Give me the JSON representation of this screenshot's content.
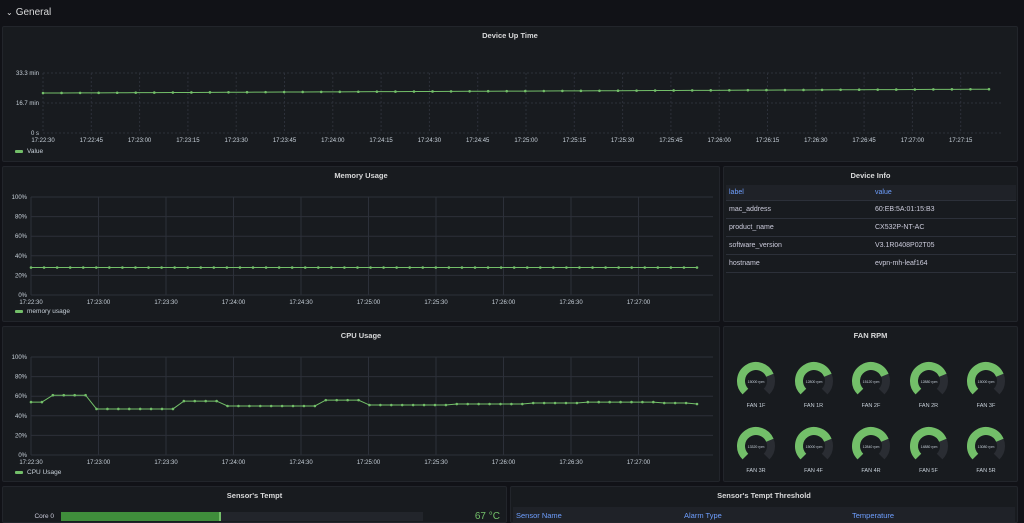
{
  "row": {
    "title": "General"
  },
  "panels": {
    "uptime": {
      "title": "Device Up Time",
      "legend": "Value",
      "y_ticks": [
        "33.3 min",
        "16.7 min",
        "0 s"
      ],
      "x_ticks": [
        "17:22:30",
        "17:22:45",
        "17:23:00",
        "17:23:15",
        "17:23:30",
        "17:23:45",
        "17:24:00",
        "17:24:15",
        "17:24:30",
        "17:24:45",
        "17:25:00",
        "17:25:15",
        "17:25:30",
        "17:25:45",
        "17:26:00",
        "17:26:15",
        "17:26:30",
        "17:26:45",
        "17:27:00",
        "17:27:15"
      ]
    },
    "memory": {
      "title": "Memory Usage",
      "legend": "memory usage",
      "y_ticks": [
        "100%",
        "80%",
        "60%",
        "40%",
        "20%",
        "0%"
      ],
      "x_ticks": [
        "17:22:30",
        "17:23:00",
        "17:23:30",
        "17:24:00",
        "17:24:30",
        "17:25:00",
        "17:25:30",
        "17:26:00",
        "17:26:30",
        "17:27:00"
      ]
    },
    "cpu": {
      "title": "CPU Usage",
      "legend": "CPU Usage",
      "y_ticks": [
        "100%",
        "80%",
        "60%",
        "40%",
        "20%",
        "0%"
      ],
      "x_ticks": [
        "17:22:30",
        "17:23:00",
        "17:23:30",
        "17:24:00",
        "17:24:30",
        "17:25:00",
        "17:25:30",
        "17:26:00",
        "17:26:30",
        "17:27:00"
      ]
    },
    "device_info": {
      "title": "Device Info",
      "columns": [
        "label",
        "value"
      ],
      "rows": [
        [
          "mac_address",
          "60:EB:5A:01:15:B3"
        ],
        [
          "product_name",
          "CX532P-NT-AC"
        ],
        [
          "software_version",
          "V3.1R0408P02T05"
        ],
        [
          "hostname",
          "evpn-mh-leaf164"
        ]
      ]
    },
    "fan_rpm": {
      "title": "FAN RPM",
      "fans": [
        {
          "name": "FAN 1F",
          "reading": "15000 rpm",
          "level": 0.75
        },
        {
          "name": "FAN 1R",
          "reading": "12800 rpm",
          "level": 0.75
        },
        {
          "name": "FAN 2F",
          "reading": "15120 rpm",
          "level": 0.75
        },
        {
          "name": "FAN 2R",
          "reading": "12880 rpm",
          "level": 0.75
        },
        {
          "name": "FAN 3F",
          "reading": "15000 rpm",
          "level": 0.75
        },
        {
          "name": "FAN 3R",
          "reading": "13320 rpm",
          "level": 0.75
        },
        {
          "name": "FAN 4F",
          "reading": "15000 rpm",
          "level": 0.75
        },
        {
          "name": "FAN 4R",
          "reading": "12840 rpm",
          "level": 0.75
        },
        {
          "name": "FAN 5F",
          "reading": "14880 rpm",
          "level": 0.75
        },
        {
          "name": "FAN 5R",
          "reading": "13080 rpm",
          "level": 0.75
        }
      ]
    },
    "sensor_temp": {
      "title": "Sensor's Tempt",
      "core_label": "Core 0",
      "value": "67",
      "unit": "°C",
      "fill": 0.67
    },
    "sensor_threshold": {
      "title": "Sensor's Tempt Threshold",
      "columns": [
        "Sensor Name",
        "Alarm Type",
        "Temperature"
      ]
    }
  },
  "colors": {
    "series": "#73bf69",
    "gauge_bg": "#2a2d33",
    "header": "#6e9fff"
  },
  "chart_data": [
    {
      "type": "line",
      "title": "Device Up Time",
      "series": [
        {
          "name": "Value",
          "x": [
            "17:22:30",
            "17:27:30"
          ],
          "y": [
            33.3,
            36.5
          ]
        }
      ],
      "y_unit": "min",
      "ylim": [
        0,
        40
      ]
    },
    {
      "type": "line",
      "title": "Memory Usage",
      "series": [
        {
          "name": "memory usage",
          "values_percent_flat": 28
        }
      ],
      "ylim": [
        0,
        100
      ]
    },
    {
      "type": "line",
      "title": "CPU Usage",
      "series": [
        {
          "name": "CPU Usage",
          "values": [
            54,
            54,
            61,
            61,
            61,
            61,
            47,
            47,
            47,
            47,
            47,
            47,
            47,
            47,
            55,
            55,
            55,
            55,
            50,
            50,
            50,
            50,
            50,
            50,
            50,
            50,
            50,
            56,
            56,
            56,
            56,
            51,
            51,
            51,
            51,
            51,
            51,
            51,
            51,
            52,
            52,
            52,
            52,
            52,
            52,
            52,
            53,
            53,
            53,
            53,
            53,
            54,
            54,
            54,
            54,
            54,
            54,
            54,
            53,
            53,
            53,
            52
          ]
        }
      ],
      "ylim": [
        0,
        100
      ]
    }
  ]
}
